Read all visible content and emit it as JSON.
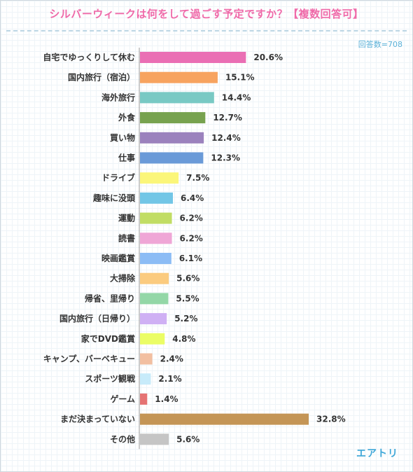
{
  "title": "シルバーウィークは何をして過ごす予定ですか？【複数回答可】",
  "note": "回答数=708",
  "brand": "エアトリ",
  "chart_data": {
    "type": "bar",
    "orientation": "horizontal",
    "title": "シルバーウィークは何をして過ごす予定ですか？【複数回答可】",
    "categories": [
      "自宅でゆっくりして休む",
      "国内旅行（宿泊）",
      "海外旅行",
      "外食",
      "買い物",
      "仕事",
      "ドライブ",
      "趣味に没頭",
      "運動",
      "読書",
      "映画鑑賞",
      "大掃除",
      "帰省、里帰り",
      "国内旅行（日帰り）",
      "家でDVD鑑賞",
      "キャンプ、バーベキュー",
      "スポーツ観戦",
      "ゲーム",
      "まだ決まっていない",
      "その他"
    ],
    "values": [
      20.6,
      15.1,
      14.4,
      12.7,
      12.4,
      12.3,
      7.5,
      6.4,
      6.2,
      6.2,
      6.1,
      5.6,
      5.5,
      5.2,
      4.8,
      2.4,
      2.1,
      1.4,
      32.8,
      5.6
    ],
    "value_labels": [
      "20.6%",
      "15.1%",
      "14.4%",
      "12.7%",
      "12.4%",
      "12.3%",
      "7.5%",
      "6.4%",
      "6.2%",
      "6.2%",
      "6.1%",
      "5.6%",
      "5.5%",
      "5.2%",
      "4.8%",
      "2.4%",
      "2.1%",
      "1.4%",
      "32.8%",
      "5.6%"
    ],
    "colors": [
      "#ea6fb4",
      "#f7a35f",
      "#79c9c4",
      "#77a24f",
      "#9b82bd",
      "#6a9ad8",
      "#fbf67a",
      "#72c6e6",
      "#c1dd64",
      "#efa6d6",
      "#8cbcf5",
      "#fbcb7f",
      "#93d7a7",
      "#cfb0f4",
      "#ebfd65",
      "#f2bfa1",
      "#c7ebfa",
      "#e57373",
      "#c49556",
      "#c5c5c5"
    ],
    "xlim": [
      0,
      35
    ],
    "grid": false,
    "legend": "none"
  }
}
